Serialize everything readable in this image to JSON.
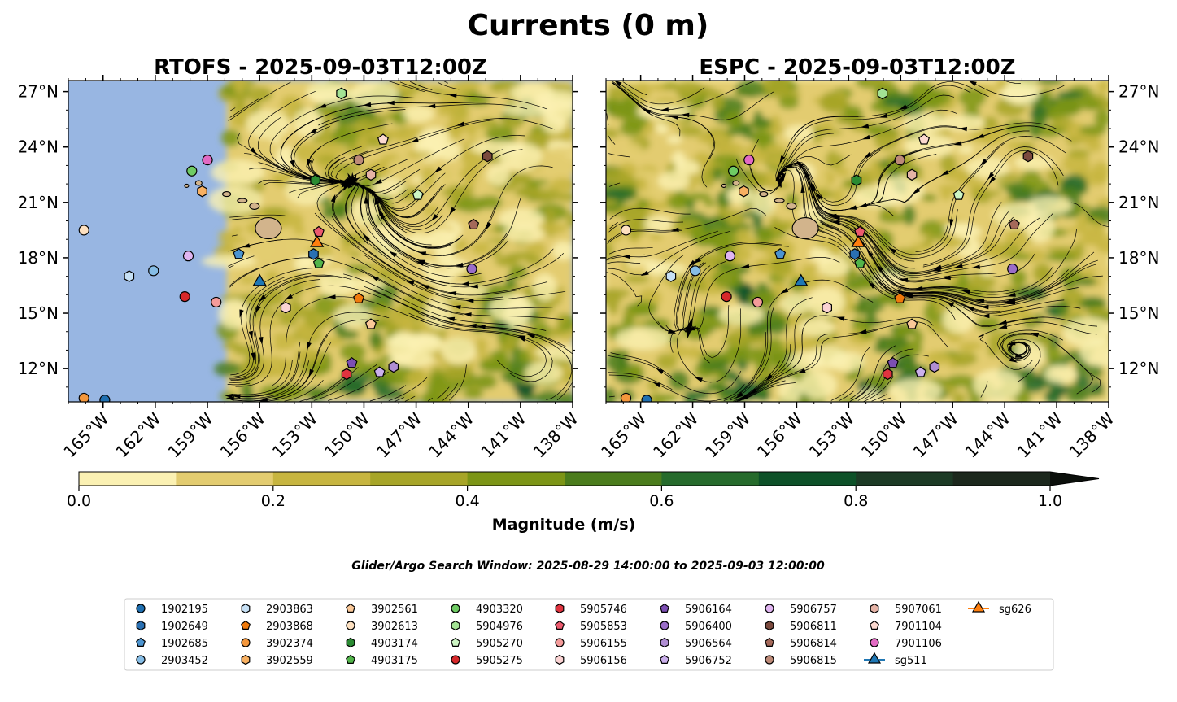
{
  "figure": {
    "title": "Currents (0 m)",
    "search_window": "Glider/Argo Search Window: 2025-08-29 14:00:00 to 2025-09-03 12:00:00"
  },
  "chart_data": [
    {
      "type": "heatmap",
      "title": "RTOFS - 2025-09-03T12:00Z",
      "xlim": [
        -167,
        -138
      ],
      "ylim": [
        10.2,
        27.6
      ],
      "xticks": [
        "165°W",
        "162°W",
        "159°W",
        "156°W",
        "153°W",
        "150°W",
        "147°W",
        "144°W",
        "141°W",
        "138°W"
      ],
      "yticks": [
        "12°N",
        "15°N",
        "18°N",
        "21°N",
        "24°N",
        "27°N"
      ],
      "data_extent_west": -157.9,
      "quantity": "surface current magnitude with streamlines"
    },
    {
      "type": "heatmap",
      "title": "ESPC - 2025-09-03T12:00Z",
      "xlim": [
        -167,
        -138
      ],
      "ylim": [
        10.2,
        27.6
      ],
      "xticks": [
        "165°W",
        "162°W",
        "159°W",
        "156°W",
        "153°W",
        "150°W",
        "147°W",
        "144°W",
        "141°W",
        "138°W"
      ],
      "yticks": [
        "12°N",
        "15°N",
        "18°N",
        "21°N",
        "24°N",
        "27°N"
      ],
      "quantity": "surface current magnitude with streamlines"
    }
  ],
  "colorbar": {
    "label": "Magnitude (m/s)",
    "ticks": [
      "0.0",
      "0.2",
      "0.4",
      "0.6",
      "0.8",
      "1.0"
    ],
    "range": [
      0,
      1
    ],
    "colors": [
      "#fbf1b3",
      "#e3cc70",
      "#c7b540",
      "#a7a528",
      "#7c9516",
      "#4b7c1c",
      "#266b2c",
      "#0d5128",
      "#1c3a25",
      "#1c281d"
    ]
  },
  "legend": [
    {
      "id": "1902195",
      "marker": "circle",
      "color": "#1f6fb0",
      "lon": -164.9,
      "lat": 10.3
    },
    {
      "id": "1902649",
      "marker": "hexagon",
      "color": "#2a70b3",
      "lon": -152.9,
      "lat": 18.2
    },
    {
      "id": "1902685",
      "marker": "pentagon",
      "color": "#4c94d0",
      "lon": -157.2,
      "lat": 18.2
    },
    {
      "id": "2903452",
      "marker": "circle",
      "color": "#86bde6",
      "lon": -162.1,
      "lat": 17.3
    },
    {
      "id": "2903863",
      "marker": "hexagon",
      "color": "#c6e0f5",
      "lon": -163.5,
      "lat": 17.0
    },
    {
      "id": "2903868",
      "marker": "pentagon",
      "color": "#f07a0c",
      "lon": -150.3,
      "lat": 15.8
    },
    {
      "id": "3902374",
      "marker": "circle",
      "color": "#f4973c",
      "lon": -166.1,
      "lat": 10.4
    },
    {
      "id": "3902559",
      "marker": "hexagon",
      "color": "#f8b061",
      "lon": -159.3,
      "lat": 21.6
    },
    {
      "id": "3902561",
      "marker": "pentagon",
      "color": "#fac898",
      "lon": -149.6,
      "lat": 14.4
    },
    {
      "id": "3902613",
      "marker": "circle",
      "color": "#fde0c0",
      "lon": -166.1,
      "lat": 19.5
    },
    {
      "id": "4903174",
      "marker": "hexagon",
      "color": "#2a8b32",
      "lon": -152.8,
      "lat": 22.2
    },
    {
      "id": "4903175",
      "marker": "pentagon",
      "color": "#52b44a",
      "lon": -152.6,
      "lat": 17.7
    },
    {
      "id": "4903320",
      "marker": "circle",
      "color": "#6fcb64",
      "lon": -159.9,
      "lat": 22.7
    },
    {
      "id": "5904976",
      "marker": "hexagon",
      "color": "#a3e394",
      "lon": -151.3,
      "lat": 26.9
    },
    {
      "id": "5905270",
      "marker": "pentagon",
      "color": "#cdf5c4",
      "lon": -146.9,
      "lat": 21.4
    },
    {
      "id": "5905275",
      "marker": "circle",
      "color": "#d6282a",
      "lon": -160.3,
      "lat": 15.9
    },
    {
      "id": "5905746",
      "marker": "hexagon",
      "color": "#e0333f",
      "lon": -151.0,
      "lat": 11.7
    },
    {
      "id": "5905853",
      "marker": "pentagon",
      "color": "#ec5a6e",
      "lon": -152.6,
      "lat": 19.4
    },
    {
      "id": "5906155",
      "marker": "circle",
      "color": "#f49b9a",
      "lon": -158.5,
      "lat": 15.6
    },
    {
      "id": "5906156",
      "marker": "hexagon",
      "color": "#fbd3d3",
      "lon": -154.5,
      "lat": 15.3
    },
    {
      "id": "5906164",
      "marker": "pentagon",
      "color": "#7c4fb3",
      "lon": -150.7,
      "lat": 12.3
    },
    {
      "id": "5906400",
      "marker": "circle",
      "color": "#9a6dc8",
      "lon": -143.8,
      "lat": 17.4
    },
    {
      "id": "5906564",
      "marker": "hexagon",
      "color": "#b08ed3",
      "lon": -148.3,
      "lat": 12.1
    },
    {
      "id": "5906752",
      "marker": "pentagon",
      "color": "#cbb0ec",
      "lon": -149.1,
      "lat": 11.8
    },
    {
      "id": "5906757",
      "marker": "circle",
      "color": "#e0b5f1",
      "lon": -160.1,
      "lat": 18.1
    },
    {
      "id": "5906811",
      "marker": "hexagon",
      "color": "#7b4a3e",
      "lon": -142.9,
      "lat": 23.5
    },
    {
      "id": "5906814",
      "marker": "pentagon",
      "color": "#a5695a",
      "lon": -143.7,
      "lat": 19.8
    },
    {
      "id": "5906815",
      "marker": "circle",
      "color": "#bd8a78",
      "lon": -150.3,
      "lat": 23.3
    },
    {
      "id": "5907061",
      "marker": "hexagon",
      "color": "#e5b3a6",
      "lon": -149.6,
      "lat": 22.5
    },
    {
      "id": "7901104",
      "marker": "pentagon",
      "color": "#fcd9d0",
      "lon": -148.9,
      "lat": 24.4
    },
    {
      "id": "7901106",
      "marker": "circle",
      "color": "#e26ac3",
      "lon": -159.0,
      "lat": 23.3
    },
    {
      "id": "sg511",
      "marker": "triangle",
      "color": "#1f77b4",
      "lon": -156.0,
      "lat": 16.7
    },
    {
      "id": "sg626",
      "marker": "triangle",
      "color": "#ff7f0e",
      "lon": -152.7,
      "lat": 18.8
    }
  ]
}
